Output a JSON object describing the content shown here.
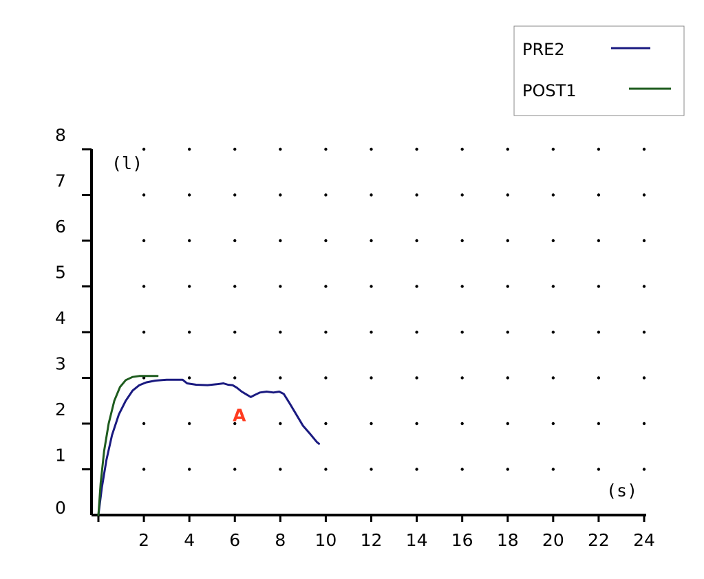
{
  "chart_data": {
    "type": "line",
    "title": "",
    "xlabel": "(s)",
    "ylabel": "(l)",
    "xlim": [
      0,
      24
    ],
    "ylim": [
      0,
      8
    ],
    "x_ticks": [
      2,
      4,
      6,
      8,
      10,
      12,
      14,
      16,
      18,
      20,
      22,
      24
    ],
    "y_ticks": [
      0,
      1,
      2,
      3,
      4,
      5,
      6,
      7,
      8
    ],
    "grid": "dots",
    "legend_position": "top-right",
    "series": [
      {
        "name": "PRE2",
        "color": "#1a1a80",
        "points": [
          [
            0,
            0
          ],
          [
            0.15,
            0.6
          ],
          [
            0.35,
            1.2
          ],
          [
            0.6,
            1.75
          ],
          [
            0.9,
            2.2
          ],
          [
            1.2,
            2.5
          ],
          [
            1.5,
            2.72
          ],
          [
            1.8,
            2.84
          ],
          [
            2.1,
            2.9
          ],
          [
            2.5,
            2.94
          ],
          [
            3.0,
            2.96
          ],
          [
            3.7,
            2.96
          ],
          [
            3.9,
            2.88
          ],
          [
            4.3,
            2.85
          ],
          [
            4.8,
            2.84
          ],
          [
            5.2,
            2.86
          ],
          [
            5.5,
            2.88
          ],
          [
            5.7,
            2.85
          ],
          [
            5.9,
            2.84
          ],
          [
            6.1,
            2.78
          ],
          [
            6.3,
            2.7
          ],
          [
            6.5,
            2.64
          ],
          [
            6.7,
            2.58
          ],
          [
            6.85,
            2.62
          ],
          [
            7.1,
            2.68
          ],
          [
            7.4,
            2.7
          ],
          [
            7.7,
            2.68
          ],
          [
            7.95,
            2.7
          ],
          [
            8.15,
            2.65
          ],
          [
            8.4,
            2.45
          ],
          [
            8.7,
            2.2
          ],
          [
            9.0,
            1.95
          ],
          [
            9.3,
            1.78
          ],
          [
            9.6,
            1.6
          ],
          [
            9.7,
            1.56
          ]
        ]
      },
      {
        "name": "POST1",
        "color": "#1e5c1e",
        "points": [
          [
            0,
            0
          ],
          [
            0.1,
            0.7
          ],
          [
            0.25,
            1.4
          ],
          [
            0.45,
            2.0
          ],
          [
            0.7,
            2.5
          ],
          [
            0.95,
            2.8
          ],
          [
            1.2,
            2.95
          ],
          [
            1.5,
            3.02
          ],
          [
            1.8,
            3.04
          ],
          [
            2.6,
            3.04
          ]
        ]
      }
    ],
    "annotations": [
      {
        "text": "A",
        "x": 6.2,
        "y": 2.05,
        "color": "#ff3b1f"
      }
    ]
  }
}
